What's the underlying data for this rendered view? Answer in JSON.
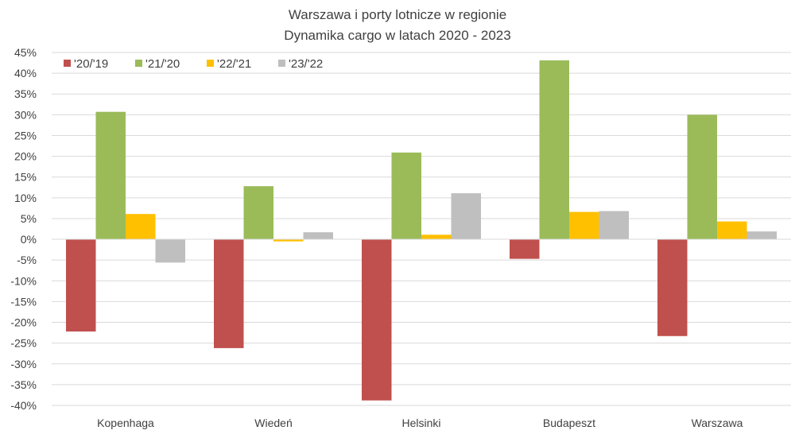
{
  "chart_data": {
    "type": "bar",
    "title": [
      "Warszawa i porty lotnicze w regionie",
      "Dynamika cargo w latach 2020 - 2023"
    ],
    "xlabel": "",
    "ylabel": "",
    "ylim": [
      -40,
      45
    ],
    "yticks": [
      45,
      40,
      35,
      30,
      25,
      20,
      15,
      10,
      5,
      0,
      -5,
      -10,
      -15,
      -20,
      -25,
      -30,
      -35,
      -40
    ],
    "ytick_labels": [
      "45%",
      "40%",
      "35%",
      "30%",
      "25%",
      "20%",
      "15%",
      "10%",
      "5%",
      "0%",
      "-5%",
      "-10%",
      "-15%",
      "-20%",
      "-25%",
      "-30%",
      "-35%",
      "-40%"
    ],
    "grid": true,
    "legend_position": "top-left",
    "categories": [
      "Kopenhaga",
      "Wiedeń",
      "Helsinki",
      "Budapeszt",
      "Warszawa"
    ],
    "series": [
      {
        "name": "'20/'19",
        "color": "#C0504D",
        "values": [
          -22.2,
          -26.2,
          -38.8,
          -4.7,
          -23.3
        ]
      },
      {
        "name": "'21/'20",
        "color": "#9BBB59",
        "values": [
          30.7,
          12.8,
          20.9,
          43.1,
          30.0
        ]
      },
      {
        "name": "'22/'21",
        "color": "#FFC000",
        "values": [
          6.1,
          -0.5,
          1.1,
          6.6,
          4.3
        ]
      },
      {
        "name": "'23/'22",
        "color": "#BFBFBF",
        "values": [
          -5.6,
          1.7,
          11.1,
          6.8,
          1.9
        ]
      }
    ]
  }
}
